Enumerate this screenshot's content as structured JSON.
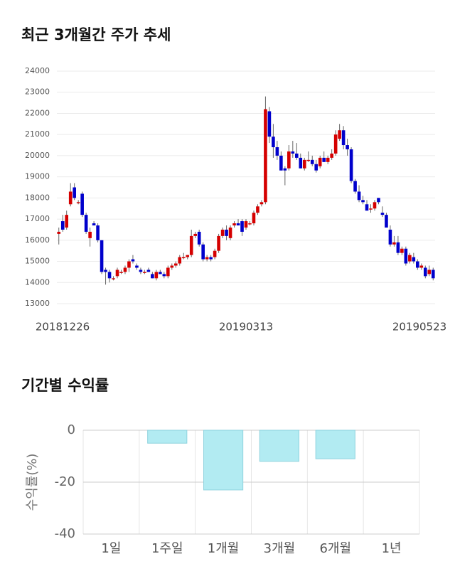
{
  "chart_data": [
    {
      "type": "candlestick",
      "title": "최근 3개월간 주가 추세",
      "categories": [
        "20181226",
        null,
        null,
        null,
        null,
        null,
        null,
        null,
        null,
        null,
        null,
        null,
        null,
        null,
        null,
        null,
        null,
        null,
        null,
        null,
        null,
        null,
        null,
        null,
        null,
        null,
        null,
        null,
        null,
        null,
        null,
        null,
        null,
        null,
        null,
        null,
        null,
        null,
        null,
        null,
        null,
        null,
        null,
        null,
        null,
        null,
        null,
        null,
        "20190313",
        null,
        null,
        null,
        null,
        null,
        null,
        null,
        null,
        null,
        null,
        null,
        null,
        null,
        null,
        null,
        null,
        null,
        null,
        null,
        null,
        null,
        null,
        null,
        null,
        null,
        null,
        null,
        null,
        null,
        null,
        null,
        null,
        null,
        null,
        null,
        null,
        null,
        null,
        null,
        null,
        null,
        null,
        null,
        null,
        null,
        null,
        null,
        "20190523"
      ],
      "open": [
        16300,
        16900,
        16600,
        17700,
        18500,
        17800,
        18200,
        17200,
        16100,
        16800,
        16700,
        16000,
        14600,
        14500,
        14200,
        14300,
        14500,
        14500,
        14700,
        15100,
        14800,
        14600,
        14500,
        14600,
        14400,
        14200,
        14500,
        14400,
        14300,
        14700,
        14800,
        14900,
        15200,
        15200,
        15300,
        16200,
        16400,
        15800,
        15100,
        15200,
        15200,
        15500,
        16200,
        16500,
        16100,
        16700,
        16800,
        16900,
        16600,
        16800,
        16800,
        17300,
        17700,
        17800,
        22100,
        20900,
        20400,
        20000,
        19400,
        19400,
        20200,
        20100,
        19900,
        19400,
        19800,
        19800,
        19600,
        19500,
        19900,
        19700,
        19900,
        20100,
        20800,
        21200,
        20500,
        20300,
        18800,
        18300,
        17900,
        17700,
        17500,
        17500,
        18000,
        17300,
        17200,
        16500,
        15800,
        15900,
        15400,
        15600,
        15000,
        15200,
        15000,
        14700,
        14700,
        14400,
        14600
      ],
      "high": [
        16600,
        17200,
        17400,
        18700,
        18700,
        17900,
        18300,
        17300,
        16600,
        16900,
        16800,
        16000,
        14700,
        14600,
        14300,
        14700,
        14600,
        14800,
        15100,
        15300,
        14900,
        14700,
        14600,
        14700,
        14500,
        14600,
        14600,
        14500,
        14800,
        14900,
        15000,
        15300,
        15400,
        15300,
        16500,
        16400,
        16500,
        15900,
        15300,
        15300,
        15600,
        16300,
        16600,
        16700,
        16700,
        16900,
        17000,
        17000,
        17000,
        16900,
        17400,
        17700,
        17900,
        22800,
        22300,
        21500,
        20700,
        20200,
        19500,
        20500,
        20700,
        20600,
        20100,
        19900,
        20200,
        20000,
        19800,
        20000,
        20200,
        20000,
        20300,
        21200,
        21500,
        21400,
        20800,
        20400,
        18900,
        18600,
        18100,
        17900,
        17700,
        17900,
        18000,
        17600,
        17300,
        16700,
        16200,
        16200,
        15700,
        15700,
        15400,
        15400,
        15100,
        14900,
        14800,
        14800,
        14700
      ],
      "low": [
        15800,
        16400,
        16500,
        17600,
        17900,
        17700,
        17100,
        16300,
        15700,
        16700,
        15900,
        14400,
        13900,
        14000,
        14100,
        14200,
        14400,
        14400,
        14500,
        14900,
        14600,
        14400,
        14400,
        14500,
        14200,
        14100,
        14400,
        14200,
        14200,
        14600,
        14700,
        14800,
        15100,
        15100,
        15200,
        16100,
        15700,
        15000,
        15000,
        15000,
        15100,
        15400,
        16100,
        16000,
        16000,
        16600,
        16700,
        16200,
        16500,
        16700,
        16700,
        17200,
        17600,
        17700,
        20600,
        19900,
        19800,
        19300,
        18600,
        19300,
        19900,
        19800,
        19400,
        19300,
        19700,
        19500,
        19200,
        19400,
        19700,
        19600,
        19800,
        20000,
        20700,
        20300,
        20000,
        18700,
        18200,
        17800,
        17700,
        17400,
        17300,
        17400,
        17700,
        17100,
        16600,
        15700,
        15700,
        15300,
        15300,
        14800,
        14900,
        14900,
        14600,
        14600,
        14200,
        14300,
        14100
      ],
      "close": [
        16400,
        16500,
        17200,
        18300,
        18000,
        17800,
        17200,
        16400,
        16400,
        16700,
        16000,
        14500,
        14500,
        14200,
        14200,
        14600,
        14500,
        14700,
        15000,
        15000,
        14700,
        14500,
        14500,
        14500,
        14200,
        14500,
        14400,
        14300,
        14700,
        14800,
        14900,
        15200,
        15200,
        15300,
        16200,
        16300,
        15800,
        15100,
        15200,
        15100,
        15500,
        16200,
        16500,
        16200,
        16600,
        16800,
        16700,
        16400,
        16900,
        16800,
        17300,
        17600,
        17800,
        22200,
        20900,
        20400,
        20000,
        19300,
        19300,
        20200,
        20100,
        19900,
        19400,
        19800,
        19800,
        19600,
        19300,
        19900,
        19700,
        19900,
        20100,
        21000,
        21200,
        20500,
        20300,
        18800,
        18300,
        17900,
        17800,
        17400,
        17500,
        17800,
        17800,
        17200,
        16600,
        15800,
        15900,
        15400,
        15600,
        14900,
        15300,
        15000,
        14700,
        14800,
        14300,
        14600,
        14200
      ],
      "up_color": "#d50000",
      "down_color": "#0000cc",
      "ylim": [
        13000,
        24000
      ],
      "yticks": [
        13000,
        14000,
        15000,
        16000,
        17000,
        18000,
        19000,
        20000,
        21000,
        22000,
        23000,
        24000
      ],
      "grid": true
    },
    {
      "type": "bar",
      "title": "기간별 수익률",
      "y_label": "수익률(%)",
      "categories": [
        "1일",
        "1주일",
        "1개월",
        "3개월",
        "6개월",
        "1년"
      ],
      "values": [
        0,
        -5,
        -23,
        -12,
        -11,
        null
      ],
      "color": "#b2ebf2",
      "ylim": [
        -40,
        0
      ],
      "yticks": [
        -40,
        -20,
        0
      ],
      "grid": true
    }
  ]
}
